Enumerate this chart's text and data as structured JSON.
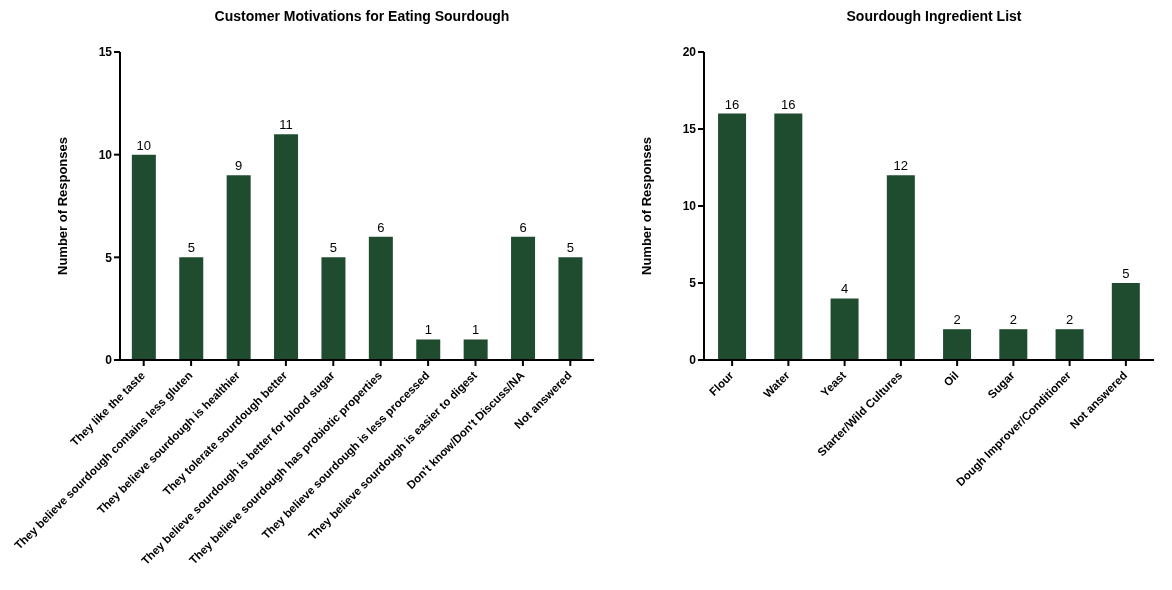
{
  "chart_data": [
    {
      "type": "bar",
      "title": "Customer Motivations for Eating Sourdough",
      "ylabel": "Number of Responses",
      "categories": [
        "They like the taste",
        "They believe sourdough contains less gluten",
        "They believe sourdough is healthier",
        "They tolerate sourdough better",
        "They believe sourdough is better for blood sugar",
        "They believe sourdough has probiotic properties",
        "They believe sourdough is less processed",
        "They believe sourdough is easier to digest",
        "Don't know/Don't Discuss/NA",
        "Not answered"
      ],
      "values": [
        10,
        5,
        9,
        11,
        5,
        6,
        1,
        1,
        6,
        5
      ],
      "color": "#1f4b2e",
      "ylim": [
        0,
        15
      ],
      "yticks": [
        0,
        5,
        10,
        15
      ],
      "grid": false,
      "data_labels": true
    },
    {
      "type": "bar",
      "title": "Sourdough Ingredient List",
      "ylabel": "Number of Responses",
      "categories": [
        "Flour",
        "Water",
        "Yeast",
        "Starter/Wild Cultures",
        "Oil",
        "Sugar",
        "Dough Improver/Conditioner",
        "Not answered"
      ],
      "values": [
        16,
        16,
        4,
        12,
        2,
        2,
        2,
        5
      ],
      "color": "#1f4b2e",
      "ylim": [
        0,
        20
      ],
      "yticks": [
        0,
        5,
        10,
        15,
        20
      ],
      "grid": false,
      "data_labels": true
    }
  ]
}
